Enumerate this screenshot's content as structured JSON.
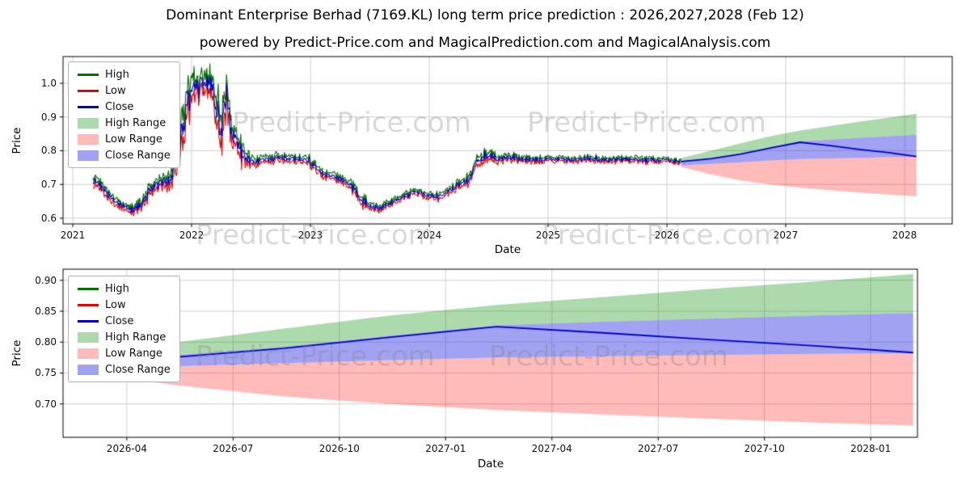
{
  "title": "Dominant Enterprise Berhad (7169.KL) long term price prediction : 2026,2027,2028 (Feb 12)",
  "subtitle": "powered by Predict-Price.com and MagicalPrediction.com and MagicalAnalysis.com",
  "watermark_text": "Predict-Price.com",
  "colors": {
    "high": "#007000",
    "low": "#e10600",
    "close": "#0000cc",
    "high_range": "rgba(0,140,0,0.32)",
    "low_range": "rgba(255,40,40,0.32)",
    "close_range": "rgba(60,60,230,0.48)",
    "grid": "#cfcfcf",
    "axis": "#000000"
  },
  "legend": [
    {
      "label": "High",
      "swatch": "line",
      "color": "#007000"
    },
    {
      "label": "Low",
      "swatch": "line",
      "color": "#e10600"
    },
    {
      "label": "Close",
      "swatch": "line",
      "color": "#0000cc"
    },
    {
      "label": "High Range",
      "swatch": "patch",
      "color": "rgba(0,140,0,0.32)"
    },
    {
      "label": "Low Range",
      "swatch": "patch",
      "color": "rgba(255,40,40,0.32)"
    },
    {
      "label": "Close Range",
      "swatch": "patch",
      "color": "rgba(60,60,230,0.48)"
    }
  ],
  "chart_data": [
    {
      "type": "line",
      "role": "history-and-forecast",
      "xlabel": "Date",
      "ylabel": "Price",
      "xlim": [
        2020.918,
        2028.401
      ],
      "ylim": [
        0.583,
        1.079
      ],
      "x_tick_values": [
        2021,
        2022,
        2023,
        2024,
        2025,
        2026,
        2027,
        2028
      ],
      "x_tick_labels": [
        "2021",
        "2022",
        "2023",
        "2024",
        "2025",
        "2026",
        "2027",
        "2028"
      ],
      "y_tick_values": [
        0.6,
        0.7,
        0.8,
        0.9,
        1.0
      ],
      "y_tick_labels": [
        "0.6",
        "0.7",
        "0.8",
        "0.9",
        "1.0"
      ],
      "series_names": [
        "High",
        "Low",
        "Close",
        "High Range",
        "Low Range",
        "Close Range"
      ],
      "history": {
        "t": [
          2021.17,
          2021.25,
          2021.33,
          2021.42,
          2021.5,
          2021.58,
          2021.67,
          2021.75,
          2021.83,
          2021.92,
          2022.0,
          2022.08,
          2022.17,
          2022.22,
          2022.25,
          2022.29,
          2022.33,
          2022.42,
          2022.5,
          2022.58,
          2022.67,
          2022.75,
          2022.83,
          2022.92,
          2023.0,
          2023.08,
          2023.17,
          2023.25,
          2023.33,
          2023.42,
          2023.5,
          2023.58,
          2023.67,
          2023.75,
          2023.83,
          2023.92,
          2024.0,
          2024.08,
          2024.17,
          2024.25,
          2024.33,
          2024.42,
          2024.5,
          2024.58,
          2024.67,
          2024.75,
          2024.83,
          2024.92,
          2025.0,
          2025.17,
          2025.33,
          2025.5,
          2025.67,
          2025.83,
          2026.0,
          2026.12
        ],
        "close": [
          0.715,
          0.69,
          0.655,
          0.635,
          0.625,
          0.64,
          0.69,
          0.705,
          0.715,
          0.87,
          0.975,
          1.0,
          1.005,
          0.92,
          0.84,
          1.0,
          0.87,
          0.8,
          0.765,
          0.77,
          0.775,
          0.78,
          0.775,
          0.78,
          0.765,
          0.735,
          0.72,
          0.715,
          0.7,
          0.66,
          0.638,
          0.628,
          0.645,
          0.66,
          0.672,
          0.675,
          0.668,
          0.66,
          0.685,
          0.7,
          0.715,
          0.77,
          0.788,
          0.775,
          0.78,
          0.775,
          0.775,
          0.772,
          0.775,
          0.773,
          0.776,
          0.772,
          0.775,
          0.773,
          0.772,
          0.768
        ],
        "vol": [
          0.013,
          0.013,
          0.012,
          0.01,
          0.01,
          0.012,
          0.015,
          0.014,
          0.018,
          0.045,
          0.035,
          0.03,
          0.035,
          0.045,
          0.05,
          0.045,
          0.03,
          0.022,
          0.012,
          0.01,
          0.01,
          0.01,
          0.01,
          0.01,
          0.01,
          0.01,
          0.01,
          0.01,
          0.012,
          0.012,
          0.01,
          0.008,
          0.008,
          0.008,
          0.008,
          0.008,
          0.008,
          0.008,
          0.009,
          0.01,
          0.012,
          0.014,
          0.012,
          0.009,
          0.008,
          0.008,
          0.008,
          0.008,
          0.007,
          0.007,
          0.007,
          0.007,
          0.007,
          0.007,
          0.006,
          0.005
        ]
      },
      "forecast": {
        "t": [
          2026.12,
          2026.37,
          2026.62,
          2026.87,
          2027.12,
          2027.37,
          2027.62,
          2027.87,
          2028.1
        ],
        "high_max": [
          0.778,
          0.8,
          0.822,
          0.843,
          0.86,
          0.873,
          0.886,
          0.898,
          0.91
        ],
        "low_min": [
          0.752,
          0.73,
          0.712,
          0.7,
          0.69,
          0.683,
          0.676,
          0.67,
          0.665
        ],
        "close": [
          0.768,
          0.776,
          0.79,
          0.808,
          0.825,
          0.815,
          0.804,
          0.794,
          0.783
        ],
        "close_top": [
          0.77,
          0.779,
          0.792,
          0.81,
          0.827,
          0.833,
          0.838,
          0.843,
          0.847
        ],
        "close_bot": [
          0.756,
          0.761,
          0.766,
          0.771,
          0.775,
          0.777,
          0.779,
          0.781,
          0.782
        ]
      }
    },
    {
      "type": "area",
      "role": "forecast-detail",
      "xlabel": "Date",
      "ylabel": "Price",
      "xlim": [
        2026.1,
        2028.11
      ],
      "ylim": [
        0.646,
        0.918
      ],
      "x_tick_values": [
        2026.25,
        2026.5,
        2026.75,
        2027.0,
        2027.25,
        2027.5,
        2027.75,
        2028.0
      ],
      "x_tick_labels": [
        "2026-04",
        "2026-07",
        "2026-10",
        "2027-01",
        "2027-04",
        "2027-07",
        "2027-10",
        "2028-01"
      ],
      "y_tick_values": [
        0.7,
        0.75,
        0.8,
        0.85,
        0.9
      ],
      "y_tick_labels": [
        "0.70",
        "0.75",
        "0.80",
        "0.85",
        "0.90"
      ],
      "series_names": [
        "High",
        "Low",
        "Close",
        "High Range",
        "Low Range",
        "Close Range"
      ],
      "forecast": {
        "t": [
          2026.12,
          2026.37,
          2026.62,
          2026.87,
          2027.12,
          2027.37,
          2027.62,
          2027.87,
          2028.1
        ],
        "high_max": [
          0.778,
          0.8,
          0.822,
          0.843,
          0.86,
          0.873,
          0.886,
          0.898,
          0.91
        ],
        "low_min": [
          0.752,
          0.73,
          0.712,
          0.7,
          0.69,
          0.683,
          0.676,
          0.67,
          0.665
        ],
        "close": [
          0.768,
          0.776,
          0.79,
          0.808,
          0.825,
          0.815,
          0.804,
          0.794,
          0.783
        ],
        "close_top": [
          0.77,
          0.779,
          0.792,
          0.81,
          0.827,
          0.833,
          0.838,
          0.843,
          0.847
        ],
        "close_bot": [
          0.756,
          0.761,
          0.766,
          0.771,
          0.775,
          0.777,
          0.779,
          0.781,
          0.782
        ]
      }
    }
  ]
}
